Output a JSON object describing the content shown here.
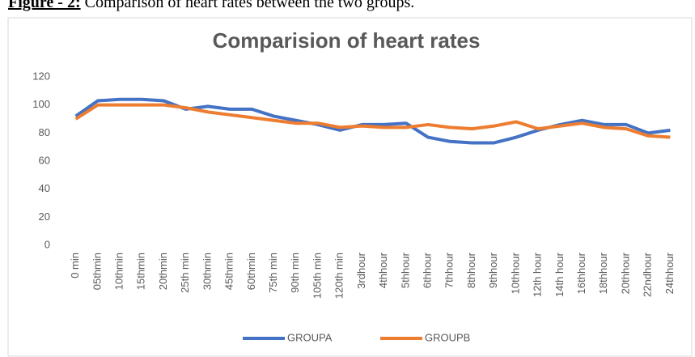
{
  "caption": {
    "label": "Figure - 2:",
    "text": "Comparison of heart rates between the two groups."
  },
  "chart_data": {
    "type": "line",
    "title": "Comparision of heart rates",
    "categories": [
      "0 min",
      "05thmin",
      "10thmin",
      "15thmin",
      "20thmin",
      "25th min",
      "30thmin",
      "45thmin",
      "60thmin",
      "75th min",
      "90th min",
      "105th min",
      "120th min",
      "3rdhour",
      "4thhour",
      "5thhour",
      "6thhour",
      "7thhour",
      "8thhour",
      "9thhour",
      "10thhour",
      "12th hour",
      "14th hour",
      "16thhour",
      "18thhour",
      "20thhour",
      "22ndhour",
      "24thhour"
    ],
    "series": [
      {
        "name": "GROUPA",
        "color": "#4472c4",
        "values": [
          92,
          103,
          104,
          104,
          103,
          97,
          99,
          97,
          97,
          92,
          89,
          86,
          82,
          86,
          86,
          87,
          77,
          74,
          73,
          73,
          77,
          82,
          86,
          89,
          86,
          86,
          80,
          82
        ]
      },
      {
        "name": "GROUPB",
        "color": "#ed7d31",
        "values": [
          90,
          100,
          100,
          100,
          100,
          98,
          95,
          93,
          91,
          89,
          87,
          87,
          84,
          85,
          84,
          84,
          86,
          84,
          83,
          85,
          88,
          83,
          85,
          87,
          84,
          83,
          78,
          77
        ]
      }
    ],
    "ylim": [
      0,
      120
    ],
    "yticks": [
      0,
      20,
      40,
      60,
      80,
      100,
      120
    ],
    "grid": false,
    "legend": "bottom"
  }
}
